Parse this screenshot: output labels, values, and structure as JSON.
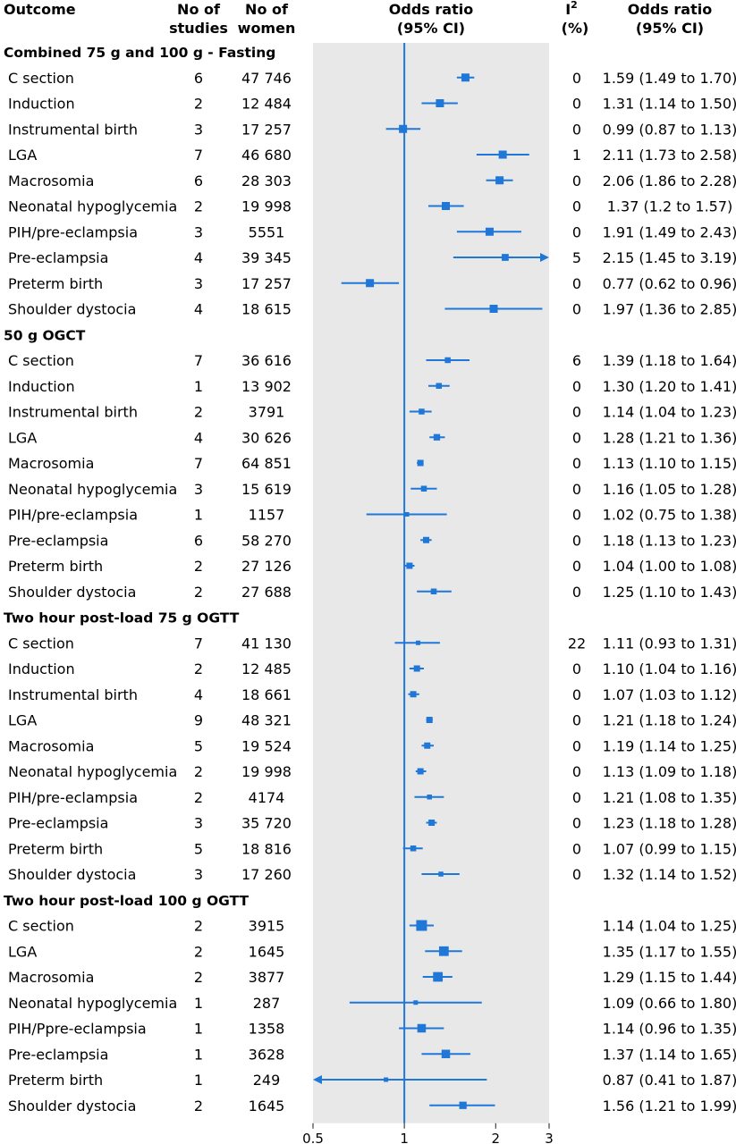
{
  "headers": {
    "outcome": "Outcome",
    "studies": [
      "No of",
      "studies"
    ],
    "women": [
      "No of",
      "women"
    ],
    "or_plot": [
      "Odds ratio",
      "(95% CI)"
    ],
    "i2": [
      "I",
      "2",
      "(%)"
    ],
    "or_text": [
      "Odds ratio",
      "(95% CI)"
    ]
  },
  "colors": {
    "marker": "#1f77d8",
    "panel": "#e8e8e8",
    "text": "#1a1a1a"
  },
  "chart_data": {
    "type": "forest",
    "x_axis": {
      "scale": "log",
      "range": [
        0.5,
        3
      ],
      "ticks": [
        0.5,
        1,
        2,
        3
      ],
      "tick_labels": [
        "0.5",
        "1",
        "2",
        "3"
      ],
      "reference_line": 1
    },
    "groups": [
      {
        "label": "Combined 75 g and 100 g - Fasting",
        "rows": [
          {
            "outcome": "C section",
            "studies": "6",
            "women": "47 746",
            "or": 1.59,
            "lo": 1.49,
            "hi": 1.7,
            "i2": "0",
            "text": "1.59 (1.49 to 1.70)",
            "weight": 2
          },
          {
            "outcome": "Induction",
            "studies": "2",
            "women": "12 484",
            "or": 1.31,
            "lo": 1.14,
            "hi": 1.5,
            "i2": "0",
            "text": "1.31 (1.14 to 1.50)",
            "weight": 2
          },
          {
            "outcome": "Instrumental birth",
            "studies": "3",
            "women": "17 257",
            "or": 0.99,
            "lo": 0.87,
            "hi": 1.13,
            "i2": "0",
            "text": "0.99 (0.87 to 1.13)",
            "weight": 2
          },
          {
            "outcome": "LGA",
            "studies": "7",
            "women": "46 680",
            "or": 2.11,
            "lo": 1.73,
            "hi": 2.58,
            "i2": "1",
            "text": "2.11 (1.73 to 2.58)",
            "weight": 2
          },
          {
            "outcome": "Macrosomia",
            "studies": "6",
            "women": "28 303",
            "or": 2.06,
            "lo": 1.86,
            "hi": 2.28,
            "i2": "0",
            "text": "2.06 (1.86 to 2.28)",
            "weight": 2
          },
          {
            "outcome": "Neonatal hypoglycemia",
            "studies": "2",
            "women": "19 998",
            "or": 1.37,
            "lo": 1.2,
            "hi": 1.57,
            "i2": "0",
            "text": "1.37 (1.2 to 1.57)",
            "weight": 2
          },
          {
            "outcome": "PIH/pre-eclampsia",
            "studies": "3",
            "women": "5551",
            "or": 1.91,
            "lo": 1.49,
            "hi": 2.43,
            "i2": "0",
            "text": "1.91 (1.49 to 2.43)",
            "weight": 2
          },
          {
            "outcome": "Pre-eclampsia",
            "studies": "4",
            "women": "39 345",
            "or": 2.15,
            "lo": 1.45,
            "hi": 3.19,
            "i2": "5",
            "text": "2.15 (1.45 to 3.19)",
            "weight": 1.5
          },
          {
            "outcome": "Preterm birth",
            "studies": "3",
            "women": "17 257",
            "or": 0.77,
            "lo": 0.62,
            "hi": 0.96,
            "i2": "0",
            "text": "0.77 (0.62 to 0.96)",
            "weight": 2
          },
          {
            "outcome": "Shoulder dystocia",
            "studies": "4",
            "women": "18 615",
            "or": 1.97,
            "lo": 1.36,
            "hi": 2.85,
            "i2": "0",
            "text": "1.97 (1.36 to 2.85)",
            "weight": 2
          }
        ]
      },
      {
        "label": "50 g OGCT",
        "rows": [
          {
            "outcome": "C section",
            "studies": "7",
            "women": "36 616",
            "or": 1.39,
            "lo": 1.18,
            "hi": 1.64,
            "i2": "6",
            "text": "1.39 (1.18 to 1.64)",
            "weight": 1
          },
          {
            "outcome": "Induction",
            "studies": "1",
            "women": "13 902",
            "or": 1.3,
            "lo": 1.2,
            "hi": 1.41,
            "i2": "0",
            "text": "1.30 (1.20 to 1.41)",
            "weight": 1
          },
          {
            "outcome": "Instrumental birth",
            "studies": "2",
            "women": "3791",
            "or": 1.14,
            "lo": 1.04,
            "hi": 1.23,
            "i2": "0",
            "text": "1.14 (1.04 to 1.23)",
            "weight": 1
          },
          {
            "outcome": "LGA",
            "studies": "4",
            "women": "30 626",
            "or": 1.28,
            "lo": 1.21,
            "hi": 1.36,
            "i2": "0",
            "text": "1.28 (1.21 to 1.36)",
            "weight": 1.3
          },
          {
            "outcome": "Macrosomia",
            "studies": "7",
            "women": "64 851",
            "or": 1.13,
            "lo": 1.1,
            "hi": 1.15,
            "i2": "0",
            "text": "1.13 (1.10 to 1.15)",
            "weight": 1.2
          },
          {
            "outcome": "Neonatal hypoglycemia",
            "studies": "3",
            "women": "15 619",
            "or": 1.16,
            "lo": 1.05,
            "hi": 1.28,
            "i2": "0",
            "text": "1.16 (1.05 to 1.28)",
            "weight": 1
          },
          {
            "outcome": "PIH/pre-eclampsia",
            "studies": "1",
            "women": "1157",
            "or": 1.02,
            "lo": 0.75,
            "hi": 1.38,
            "i2": "0",
            "text": "1.02 (0.75 to 1.38)",
            "weight": 0.4
          },
          {
            "outcome": "Pre-eclampsia",
            "studies": "6",
            "women": "58 270",
            "or": 1.18,
            "lo": 1.13,
            "hi": 1.23,
            "i2": "0",
            "text": "1.18 (1.13 to 1.23)",
            "weight": 1.2
          },
          {
            "outcome": "Preterm birth",
            "studies": "2",
            "women": "27 126",
            "or": 1.04,
            "lo": 1.0,
            "hi": 1.08,
            "i2": "0",
            "text": "1.04 (1.00 to 1.08)",
            "weight": 1.2
          },
          {
            "outcome": "Shoulder dystocia",
            "studies": "2",
            "women": "27 688",
            "or": 1.25,
            "lo": 1.1,
            "hi": 1.43,
            "i2": "0",
            "text": "1.25 (1.10 to 1.43)",
            "weight": 1
          }
        ]
      },
      {
        "label": "Two hour post-load 75 g OGTT",
        "rows": [
          {
            "outcome": "C section",
            "studies": "7",
            "women": "41 130",
            "or": 1.11,
            "lo": 0.93,
            "hi": 1.31,
            "i2": "22",
            "text": "1.11 (0.93 to 1.31)",
            "weight": 0.4
          },
          {
            "outcome": "Induction",
            "studies": "2",
            "women": "12 485",
            "or": 1.1,
            "lo": 1.04,
            "hi": 1.16,
            "i2": "0",
            "text": "1.10 (1.04 to 1.16)",
            "weight": 1.2
          },
          {
            "outcome": "Instrumental birth",
            "studies": "4",
            "women": "18 661",
            "or": 1.07,
            "lo": 1.03,
            "hi": 1.12,
            "i2": "0",
            "text": "1.07 (1.03 to 1.12)",
            "weight": 1.2
          },
          {
            "outcome": "LGA",
            "studies": "9",
            "women": "48 321",
            "or": 1.21,
            "lo": 1.18,
            "hi": 1.24,
            "i2": "0",
            "text": "1.21 (1.18 to 1.24)",
            "weight": 1.2
          },
          {
            "outcome": "Macrosomia",
            "studies": "5",
            "women": "19 524",
            "or": 1.19,
            "lo": 1.14,
            "hi": 1.25,
            "i2": "0",
            "text": "1.19 (1.14 to 1.25)",
            "weight": 1.2
          },
          {
            "outcome": "Neonatal hypoglycemia",
            "studies": "2",
            "women": "19 998",
            "or": 1.13,
            "lo": 1.09,
            "hi": 1.18,
            "i2": "0",
            "text": "1.13 (1.09 to 1.18)",
            "weight": 1.2
          },
          {
            "outcome": "PIH/pre-eclampsia",
            "studies": "2",
            "women": "4174",
            "or": 1.21,
            "lo": 1.08,
            "hi": 1.35,
            "i2": "0",
            "text": "1.21 (1.08 to 1.35)",
            "weight": 0.6
          },
          {
            "outcome": "Pre-eclampsia",
            "studies": "3",
            "women": "35 720",
            "or": 1.23,
            "lo": 1.18,
            "hi": 1.28,
            "i2": "0",
            "text": "1.23 (1.18 to 1.28)",
            "weight": 1.2
          },
          {
            "outcome": "Preterm birth",
            "studies": "5",
            "women": "18 816",
            "or": 1.07,
            "lo": 0.99,
            "hi": 1.15,
            "i2": "0",
            "text": "1.07 (0.99 to 1.15)",
            "weight": 1
          },
          {
            "outcome": "Shoulder dystocia",
            "studies": "3",
            "women": "17 260",
            "or": 1.32,
            "lo": 1.14,
            "hi": 1.52,
            "i2": "0",
            "text": "1.32 (1.14 to 1.52)",
            "weight": 0.6
          }
        ]
      },
      {
        "label": "Two hour post-load 100 g OGTT",
        "rows": [
          {
            "outcome": "C section",
            "studies": "2",
            "women": "3915",
            "or": 1.14,
            "lo": 1.04,
            "hi": 1.25,
            "i2": "",
            "text": "1.14 (1.04 to 1.25)",
            "weight": 3.2
          },
          {
            "outcome": "LGA",
            "studies": "2",
            "women": "1645",
            "or": 1.35,
            "lo": 1.17,
            "hi": 1.55,
            "i2": "",
            "text": "1.35 (1.17 to 1.55)",
            "weight": 2.7
          },
          {
            "outcome": "Macrosomia",
            "studies": "2",
            "women": "3877",
            "or": 1.29,
            "lo": 1.15,
            "hi": 1.44,
            "i2": "",
            "text": "1.29 (1.15 to 1.44)",
            "weight": 2.7
          },
          {
            "outcome": "Neonatal hypoglycemia",
            "studies": "1",
            "women": "287",
            "or": 1.09,
            "lo": 0.66,
            "hi": 1.8,
            "i2": "",
            "text": "1.09 (0.66 to 1.80)",
            "weight": 0.4
          },
          {
            "outcome": "PIH/Ppre-eclampsia",
            "studies": "1",
            "women": "1358",
            "or": 1.14,
            "lo": 0.96,
            "hi": 1.35,
            "i2": "",
            "text": "1.14 (0.96 to 1.35)",
            "weight": 2.2
          },
          {
            "outcome": "Pre-eclampsia",
            "studies": "1",
            "women": "3628",
            "or": 1.37,
            "lo": 1.14,
            "hi": 1.65,
            "i2": "",
            "text": "1.37 (1.14 to 1.65)",
            "weight": 2.2
          },
          {
            "outcome": "Preterm birth",
            "studies": "1",
            "women": "249",
            "or": 0.87,
            "lo": 0.41,
            "hi": 1.87,
            "i2": "",
            "text": "0.87 (0.41 to 1.87)",
            "weight": 0.4
          },
          {
            "outcome": "Shoulder dystocia",
            "studies": "2",
            "women": "1645",
            "or": 1.56,
            "lo": 1.21,
            "hi": 1.99,
            "i2": "",
            "text": "1.56 (1.21 to 1.99)",
            "weight": 1.7
          }
        ]
      }
    ]
  }
}
